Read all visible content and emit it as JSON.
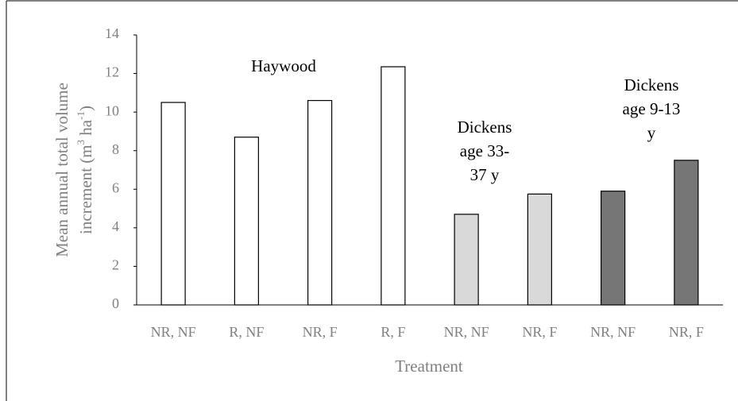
{
  "chart_data": {
    "type": "bar",
    "categories": [
      "NR, NF",
      "R, NF",
      "NR, F",
      "R, F",
      "NR, NF",
      "NR, F",
      "NR, NF",
      "NR, F"
    ],
    "values": [
      10.5,
      8.7,
      10.6,
      12.35,
      4.7,
      5.75,
      5.9,
      7.5
    ],
    "colors": [
      "#ffffff",
      "#ffffff",
      "#ffffff",
      "#ffffff",
      "#d9d9d9",
      "#d9d9d9",
      "#767676",
      "#767676"
    ],
    "ylim": [
      0,
      14
    ],
    "yticks": [
      0,
      2,
      4,
      6,
      8,
      10,
      12,
      14
    ],
    "grid": false,
    "x_label": "Treatment",
    "y_label": {
      "line1": "Mean annual total volume",
      "line2": [
        "increment (m",
        "3",
        " ha",
        "-1",
        ")"
      ]
    },
    "annotations": [
      [
        "Haywood"
      ],
      [
        "Dickens",
        "age 33-",
        "37 y"
      ],
      [
        "Dickens",
        "age 9-13",
        "y"
      ]
    ]
  }
}
